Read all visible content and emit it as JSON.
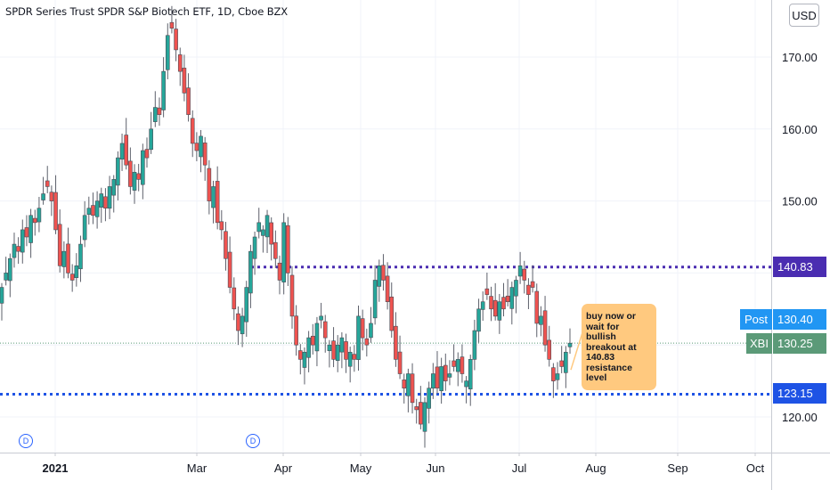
{
  "header": {
    "title": "SPDR Series Trust SPDR S&P Biotech ETF, 1D, Cboe BZX",
    "currency_label": "USD"
  },
  "price_scale": {
    "ticks": [
      "170.00",
      "160.00",
      "150.00",
      "120.00"
    ],
    "resistance_label": "140.83",
    "support_label": "123.15",
    "post_label": "Post",
    "post_value": "130.40",
    "symbol_label": "XBI",
    "last_value": "130.25"
  },
  "annotation": {
    "text": "buy now or wait for bullish breakout at 140.83 resistance level"
  },
  "dividend_marker": "D",
  "colors": {
    "up": "#26a69a",
    "down": "#ef5350",
    "resistance": "#4a2db1",
    "support": "#1e53e5",
    "post": "#2196f3",
    "last": "#5b9a78",
    "note": "#ffc97f"
  },
  "chart_data": {
    "type": "candlestick",
    "title": "SPDR Series Trust SPDR S&P Biotech ETF, 1D, Cboe BZX",
    "xlabel": "",
    "ylabel": "",
    "ylim": [
      116,
      176
    ],
    "x_tick_labels": [
      "2021",
      "Mar",
      "Apr",
      "May",
      "Jun",
      "Jul",
      "Aug",
      "Sep",
      "Oct"
    ],
    "y_tick_labels": [
      170,
      160,
      150,
      120
    ],
    "grid": true,
    "horizontal_levels": [
      140.83,
      123.15
    ],
    "last_price": 130.25,
    "post_market_price": 130.4,
    "dividend_markers": [
      "Dec 2020",
      "Mar 2021"
    ],
    "candles_close": [
      138,
      140,
      142,
      144,
      143,
      146,
      145,
      148,
      147,
      149,
      151,
      152,
      150,
      146,
      141,
      143,
      140,
      139,
      141,
      144,
      148,
      149,
      148,
      150,
      151,
      149,
      152,
      153,
      156,
      158,
      155,
      152,
      154,
      153,
      157,
      156,
      160,
      163,
      162,
      168,
      173,
      174,
      171,
      168,
      165,
      162,
      158,
      157,
      159,
      155,
      150,
      152,
      147,
      146,
      142,
      138,
      135,
      132,
      134,
      138,
      143,
      145,
      147,
      146,
      148,
      144,
      142,
      139,
      147,
      140,
      134,
      130,
      128,
      129,
      131,
      130,
      133,
      134,
      131,
      130,
      128,
      130,
      131,
      128,
      129,
      128,
      134,
      131,
      130,
      133,
      139,
      141,
      139,
      136,
      132,
      128,
      126,
      124,
      126,
      122,
      121,
      119,
      122,
      124,
      126,
      124,
      127,
      125,
      126,
      127,
      128,
      126,
      125,
      128,
      132,
      135,
      136,
      137,
      135,
      134,
      136,
      135,
      136,
      138,
      139,
      141,
      139,
      137,
      138,
      133,
      134,
      130,
      128,
      125,
      126,
      127,
      129,
      130.25
    ]
  }
}
